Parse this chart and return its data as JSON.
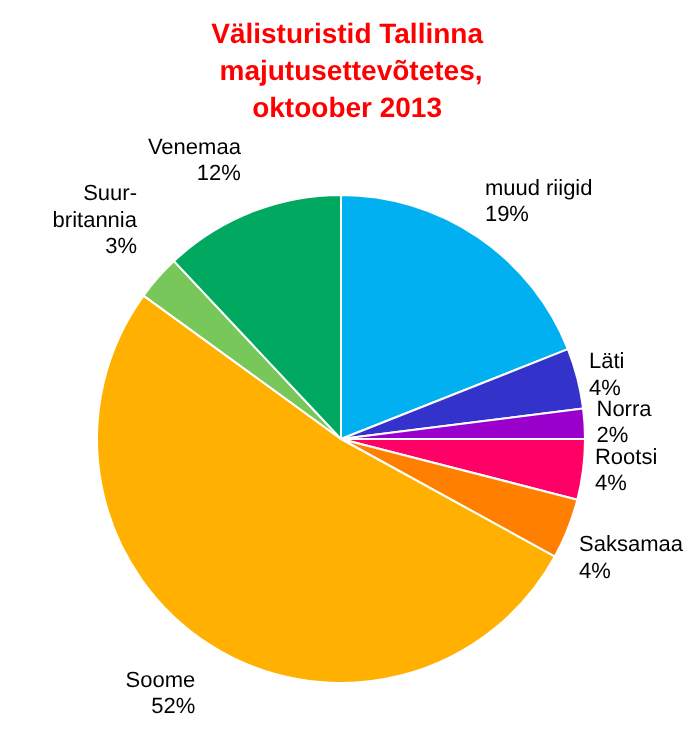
{
  "chart_data": {
    "type": "pie",
    "title": "Välisturistid  Tallinna\nmajutusettevõtetes,\noktoober  2013",
    "categories": [
      "muud riigid",
      "Läti",
      "Norra",
      "Rootsi",
      "Saksamaa",
      "Soome",
      "Suur-\nbritannia",
      "Venemaa"
    ],
    "values": [
      19,
      4,
      2,
      4,
      4,
      52,
      3,
      12
    ],
    "value_labels": [
      "19%",
      "4%",
      "2%",
      "4%",
      "4%",
      "52%",
      "3%",
      "12%"
    ],
    "colors": [
      "#00b0f0",
      "#3333cc",
      "#9900cc",
      "#ff0066",
      "#ff8000",
      "#ffb000",
      "#77c75a",
      "#00a860"
    ]
  }
}
